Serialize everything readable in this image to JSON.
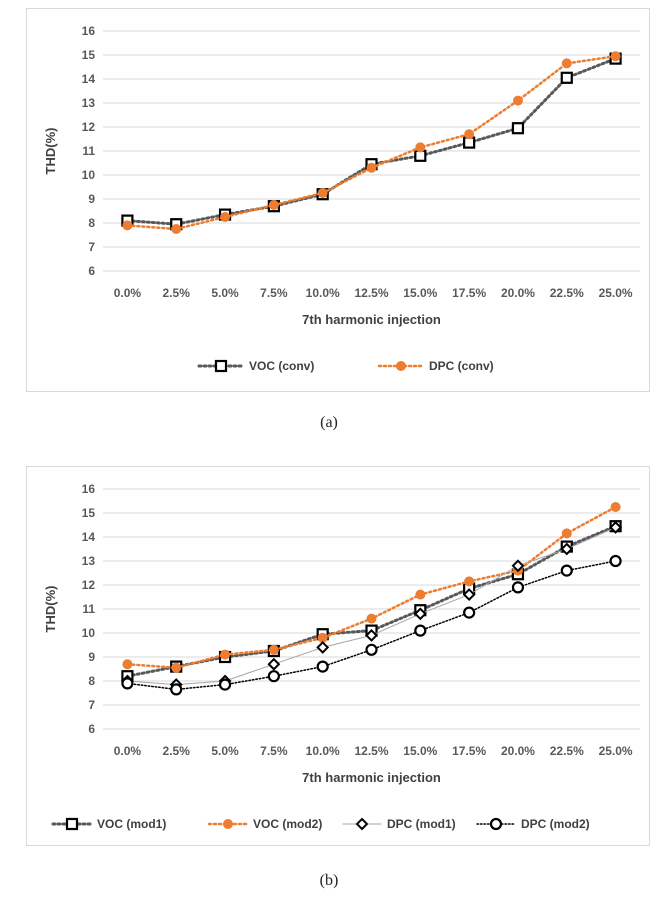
{
  "captions": [
    "(a)",
    "(b)"
  ],
  "chart_data": [
    {
      "type": "line",
      "xlabel": "7th harmonic injection",
      "ylabel": "THD(%)",
      "ylim": [
        6,
        16
      ],
      "ytick_step": 1,
      "grid": "horizontal",
      "legend_position": "bottom",
      "categories": [
        "0.0%",
        "2.5%",
        "5.0%",
        "7.5%",
        "10.0%",
        "12.5%",
        "15.0%",
        "17.5%",
        "20.0%",
        "22.5%",
        "25.0%"
      ],
      "series": [
        {
          "name": "VOC (conv)",
          "color": "#595959",
          "line": "dotted-gray",
          "marker": "hollow-square",
          "values": [
            8.1,
            7.95,
            8.35,
            8.7,
            9.2,
            10.45,
            10.8,
            11.35,
            11.95,
            14.05,
            14.85
          ]
        },
        {
          "name": "DPC (conv)",
          "color": "#ed7d31",
          "line": "dotted-orange",
          "marker": "filled-circle",
          "values": [
            7.9,
            7.75,
            8.25,
            8.75,
            9.25,
            10.3,
            11.15,
            11.7,
            13.1,
            14.65,
            14.95
          ]
        }
      ]
    },
    {
      "type": "line",
      "xlabel": "7th harmonic injection",
      "ylabel": "THD(%)",
      "ylim": [
        6,
        16
      ],
      "ytick_step": 1,
      "grid": "horizontal",
      "legend_position": "bottom",
      "categories": [
        "0.0%",
        "2.5%",
        "5.0%",
        "7.5%",
        "10.0%",
        "12.5%",
        "15.0%",
        "17.5%",
        "20.0%",
        "22.5%",
        "25.0%"
      ],
      "series": [
        {
          "name": "VOC (mod1)",
          "color": "#595959",
          "line": "dotted-gray",
          "marker": "hollow-square",
          "values": [
            8.2,
            8.6,
            9.0,
            9.25,
            9.95,
            10.1,
            10.95,
            11.85,
            12.45,
            13.6,
            14.45
          ]
        },
        {
          "name": "VOC (mod2)",
          "color": "#ed7d31",
          "line": "dotted-orange",
          "marker": "filled-circle",
          "values": [
            8.7,
            8.55,
            9.1,
            9.3,
            9.8,
            10.6,
            11.6,
            12.15,
            12.6,
            14.15,
            15.25
          ]
        },
        {
          "name": "DPC (mod1)",
          "color": "#a6a6a6",
          "line": "solid-thin",
          "marker": "hollow-diamond",
          "values": [
            8.0,
            7.85,
            8.0,
            8.7,
            9.4,
            9.9,
            10.8,
            11.6,
            12.8,
            13.5,
            14.4
          ]
        },
        {
          "name": "DPC (mod2)",
          "color": "#000000",
          "line": "dotted-fine",
          "marker": "hollow-circle",
          "values": [
            7.9,
            7.65,
            7.85,
            8.2,
            8.6,
            9.3,
            10.1,
            10.85,
            11.9,
            12.6,
            13.0
          ]
        }
      ]
    }
  ]
}
